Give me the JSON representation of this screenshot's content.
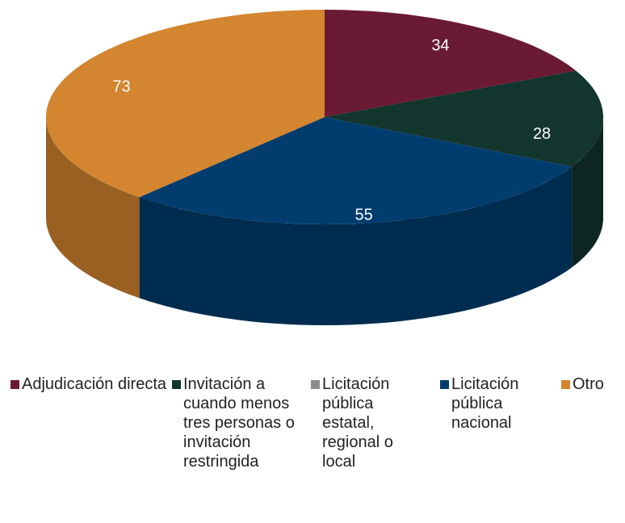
{
  "chart_data": {
    "type": "pie3d",
    "categories": [
      "Adjudicación directa",
      "Invitación a cuando menos tres personas o invitación restringida",
      "Licitación pública estatal, regional o local",
      "Licitación pública nacional",
      "Otro"
    ],
    "values": [
      34,
      28,
      0,
      55,
      73
    ],
    "colors": [
      "#6b1a33",
      "#12352e",
      "#8c8c8c",
      "#003d6e",
      "#d4852f"
    ],
    "legend": "bottom"
  }
}
